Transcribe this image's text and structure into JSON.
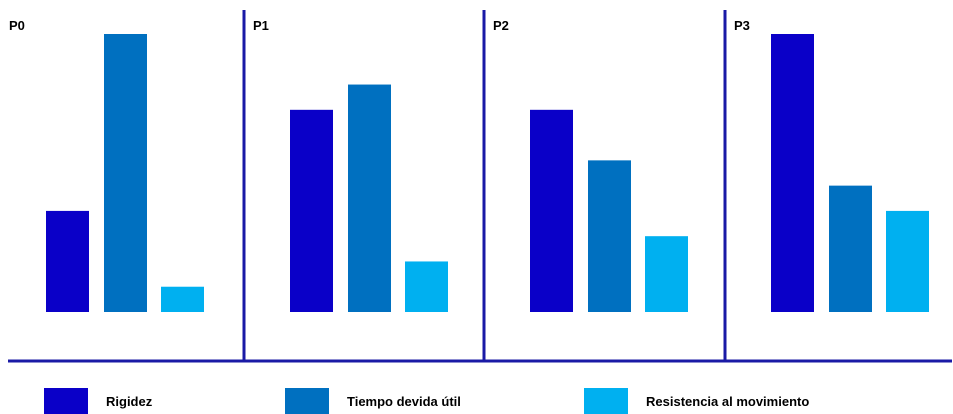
{
  "chart_data": {
    "type": "bar",
    "categories": [
      "P0",
      "P1",
      "P2",
      "P3"
    ],
    "series": [
      {
        "name": "Rigidez",
        "values": [
          4,
          8,
          8,
          11
        ],
        "color": "#0a00c8"
      },
      {
        "name": "Tiempo devida útil",
        "values": [
          11,
          9,
          6,
          5
        ],
        "color": "#0070c0"
      },
      {
        "name": "Resistencia al movimiento",
        "values": [
          1,
          2,
          3,
          4
        ],
        "color": "#00b0f0"
      }
    ],
    "ylim": [
      0,
      11
    ],
    "grid": false,
    "legend_position": "bottom",
    "axis_color": "#1a1aa6"
  }
}
